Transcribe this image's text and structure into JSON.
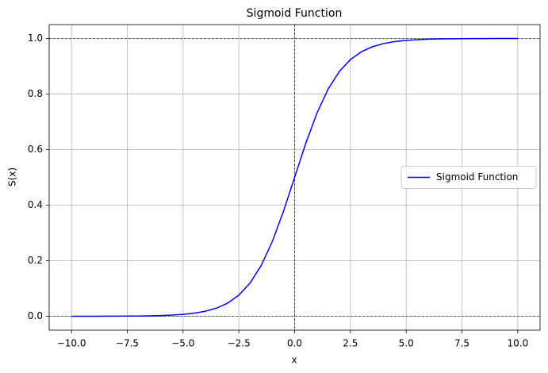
{
  "chart_data": {
    "type": "line",
    "title": "Sigmoid Function",
    "x_label": "x",
    "y_label": "S(x)",
    "x": [
      -10,
      -9.5,
      -9,
      -8.5,
      -8,
      -7.5,
      -7,
      -6.5,
      -6,
      -5.5,
      -5,
      -4.5,
      -4,
      -3.5,
      -3,
      -2.5,
      -2,
      -1.5,
      -1,
      -0.5,
      0,
      0.5,
      1,
      1.5,
      2,
      2.5,
      3,
      3.5,
      4,
      4.5,
      5,
      5.5,
      6,
      6.5,
      7,
      7.5,
      8,
      8.5,
      9,
      9.5,
      10
    ],
    "series": [
      {
        "name": "Sigmoid Function",
        "color": "#0000ff",
        "values": [
          0.0,
          0.0001,
          0.0001,
          0.0002,
          0.0003,
          0.0006,
          0.0009,
          0.0015,
          0.0025,
          0.0041,
          0.0067,
          0.011,
          0.018,
          0.0293,
          0.0474,
          0.0759,
          0.1192,
          0.1824,
          0.2689,
          0.3775,
          0.5,
          0.6225,
          0.7311,
          0.8176,
          0.8808,
          0.9241,
          0.9526,
          0.9707,
          0.982,
          0.989,
          0.9933,
          0.9959,
          0.9975,
          0.9985,
          0.9991,
          0.9994,
          0.9997,
          0.9998,
          0.9999,
          0.9999,
          1.0
        ]
      }
    ],
    "xlim": [
      -11,
      11
    ],
    "ylim": [
      -0.05,
      1.05
    ],
    "xticks": [
      {
        "value": -10,
        "label": "−10.0"
      },
      {
        "value": -7.5,
        "label": "−7.5"
      },
      {
        "value": -5,
        "label": "−5.0"
      },
      {
        "value": -2.5,
        "label": "−2.5"
      },
      {
        "value": 0,
        "label": "0.0"
      },
      2.5,
      {
        "value": 5,
        "label": "5.0"
      },
      7.5,
      {
        "value": 10,
        "label": "10.0"
      }
    ],
    "yticks": [
      {
        "value": 0,
        "label": "0.0"
      },
      0.2,
      0.4,
      0.6,
      0.8,
      {
        "value": 1,
        "label": "1.0"
      }
    ],
    "hlines": [
      0,
      1
    ],
    "vlines": [
      0
    ],
    "grid": true,
    "legend": "center right"
  }
}
